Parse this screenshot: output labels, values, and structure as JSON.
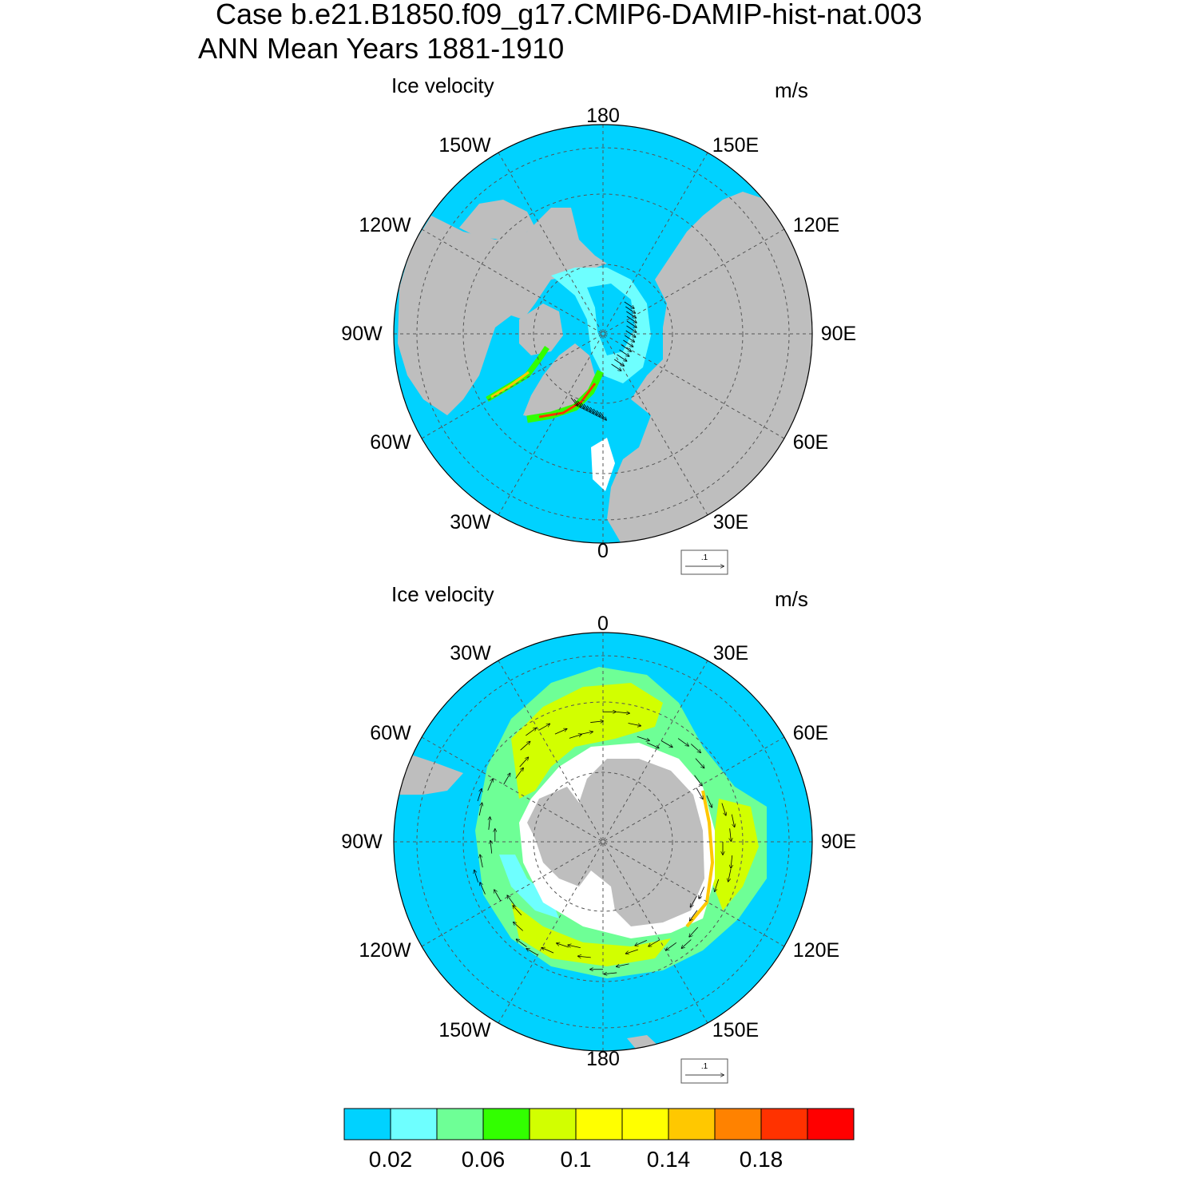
{
  "title": {
    "line1": "Case b.e21.B1850.f09_g17.CMIP6-DAMIP-hist-nat.003",
    "line2": "ANN Mean   Years 1881-1910"
  },
  "panels": [
    {
      "id": "north",
      "variable": "Ice velocity",
      "units": "m/s",
      "lon_labels": [
        "180",
        "150E",
        "120E",
        "90E",
        "60E",
        "30E",
        "0",
        "30W",
        "60W",
        "90W",
        "120W",
        "150W"
      ],
      "reference_vector": ".1"
    },
    {
      "id": "south",
      "variable": "Ice velocity",
      "units": "m/s",
      "lon_labels": [
        "0",
        "30E",
        "60E",
        "90E",
        "120E",
        "150E",
        "180",
        "150W",
        "120W",
        "90W",
        "60W",
        "30W"
      ],
      "reference_vector": ".1"
    }
  ],
  "colorbar": {
    "colors": [
      "#00d2ff",
      "#6effff",
      "#6eff96",
      "#32ff00",
      "#d2ff00",
      "#ffff00",
      "#ffff00",
      "#ffc800",
      "#ff8200",
      "#ff3200",
      "#ff0000"
    ],
    "labels": [
      "0.02",
      "0.06",
      "0.1",
      "0.14",
      "0.18"
    ]
  },
  "colors": {
    "ocean": "#00d2ff",
    "land": "#bebebe",
    "missing": "#ffffff"
  }
}
